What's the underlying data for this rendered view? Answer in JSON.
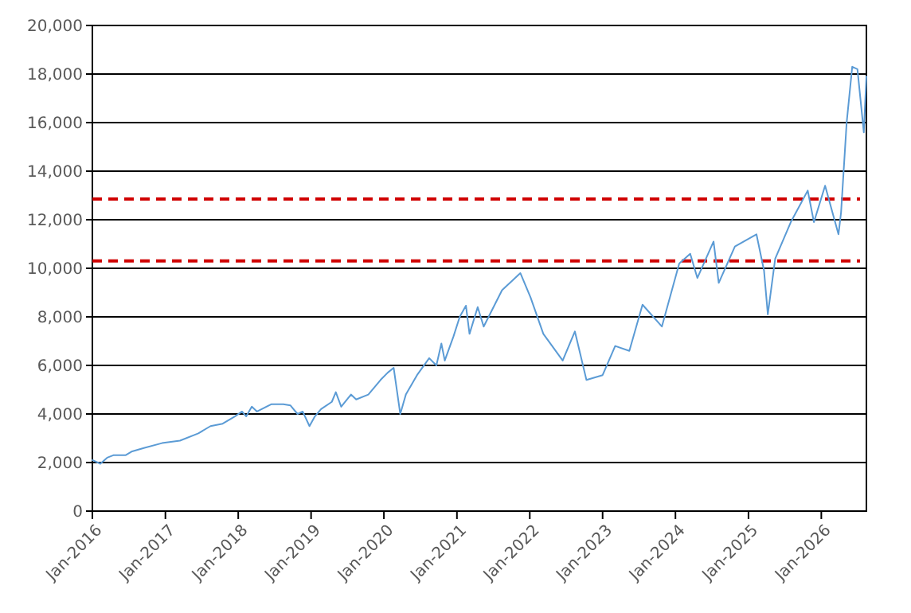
{
  "chart_data": {
    "type": "line",
    "x": [
      "2016-01-01",
      "2016-02-10",
      "2016-03-15",
      "2016-04-15",
      "2016-06-15",
      "2016-07-15",
      "2016-09-15",
      "2016-12-15",
      "2017-03-15",
      "2017-06-15",
      "2017-08-15",
      "2017-10-15",
      "2017-12-15",
      "2018-01-20",
      "2018-02-10",
      "2018-03-10",
      "2018-04-05",
      "2018-06-15",
      "2018-08-15",
      "2018-09-20",
      "2018-10-25",
      "2018-11-20",
      "2018-12-24",
      "2019-01-20",
      "2019-02-20",
      "2019-04-15",
      "2019-05-05",
      "2019-06-01",
      "2019-07-20",
      "2019-08-15",
      "2019-10-15",
      "2019-12-15",
      "2020-01-20",
      "2020-02-19",
      "2020-03-23",
      "2020-04-20",
      "2020-06-15",
      "2020-08-15",
      "2020-09-20",
      "2020-10-15",
      "2020-11-01",
      "2020-12-15",
      "2021-01-15",
      "2021-02-15",
      "2021-03-05",
      "2021-04-15",
      "2021-05-15",
      "2021-08-15",
      "2021-11-15",
      "2022-01-05",
      "2022-03-10",
      "2022-06-15",
      "2022-08-15",
      "2022-10-12",
      "2023-01-01",
      "2023-03-05",
      "2023-05-15",
      "2023-07-20",
      "2023-10-25",
      "2024-01-20",
      "2024-03-15",
      "2024-04-20",
      "2024-07-10",
      "2024-08-05",
      "2024-10-25",
      "2025-02-10",
      "2025-03-20",
      "2025-04-08",
      "2025-05-15",
      "2025-08-01",
      "2025-10-25",
      "2025-11-25",
      "2026-01-20",
      "2026-03-28",
      "2026-04-10",
      "2026-05-08",
      "2026-06-05",
      "2026-07-01",
      "2026-08-02",
      "2026-08-15"
    ],
    "series": [
      {
        "color": "#5b9bd5",
        "values": [
          2100,
          1950,
          2200,
          2300,
          2300,
          2450,
          2600,
          2800,
          2900,
          3200,
          3500,
          3600,
          3900,
          4100,
          3900,
          4300,
          4100,
          4400,
          4400,
          4350,
          4000,
          4100,
          3500,
          3900,
          4200,
          4500,
          4900,
          4300,
          4800,
          4600,
          4800,
          5400,
          5700,
          5900,
          4000,
          4800,
          5600,
          6300,
          6000,
          6900,
          6200,
          7200,
          8000,
          8460,
          7300,
          8400,
          7600,
          9100,
          9800,
          8800,
          7300,
          6200,
          7400,
          5400,
          5600,
          6800,
          6600,
          8500,
          7600,
          10200,
          10600,
          9600,
          11100,
          9400,
          10900,
          11400,
          9900,
          8100,
          10400,
          11900,
          13200,
          11900,
          13400,
          11400,
          12300,
          16000,
          18300,
          18200,
          15600,
          17900
        ]
      }
    ],
    "xlim": [
      "2016-01-01",
      "2026-08-15"
    ],
    "xticks": [
      {
        "value": "2016-01-01",
        "label": "Jan-2016"
      },
      {
        "value": "2017-01-01",
        "label": "Jan-2017"
      },
      {
        "value": "2018-01-01",
        "label": "Jan-2018"
      },
      {
        "value": "2019-01-01",
        "label": "Jan-2019"
      },
      {
        "value": "2020-01-01",
        "label": "Jan-2020"
      },
      {
        "value": "2021-01-01",
        "label": "Jan-2021"
      },
      {
        "value": "2022-01-01",
        "label": "Jan-2022"
      },
      {
        "value": "2023-01-01",
        "label": "Jan-2023"
      },
      {
        "value": "2024-01-01",
        "label": "Jan-2024"
      },
      {
        "value": "2025-01-01",
        "label": "Jan-2025"
      },
      {
        "value": "2026-01-01",
        "label": "Jan-2026"
      }
    ],
    "ylim": [
      0,
      20000
    ],
    "yticks": [
      0,
      {
        "value": 2000,
        "label": "2,000"
      },
      {
        "value": 4000,
        "label": "4,000"
      },
      {
        "value": 6000,
        "label": "6,000"
      },
      {
        "value": 8000,
        "label": "8,000"
      },
      {
        "value": 10000,
        "label": "10,000"
      },
      {
        "value": 12000,
        "label": "12,000"
      },
      {
        "value": 14000,
        "label": "14,000"
      },
      {
        "value": 16000,
        "label": "16,000"
      },
      {
        "value": 18000,
        "label": "18,000"
      },
      {
        "value": 20000,
        "label": "20,000"
      }
    ],
    "grid": "y",
    "line_style": "solid",
    "ref_lines": [
      {
        "axis": "y",
        "value": 12850,
        "color": "#d00000",
        "line_style": "dashed"
      },
      {
        "axis": "y",
        "value": 10300,
        "color": "#d00000",
        "line_style": "dashed"
      }
    ]
  }
}
